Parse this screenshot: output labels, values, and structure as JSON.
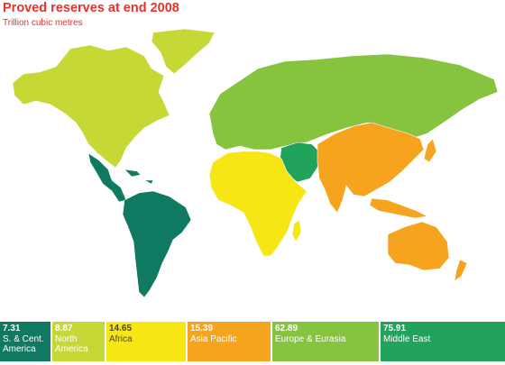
{
  "title": "Proved reserves at end 2008",
  "subtitle": "Trillion cubic metres",
  "regions": [
    {
      "id": "sc-america",
      "value": "7.31",
      "label": "S. & Cent. America",
      "color": "#0f7a61",
      "text": "#ffffff"
    },
    {
      "id": "north-america",
      "value": "8.87",
      "label": "North America",
      "color": "#c6d836",
      "text": "#ffffff"
    },
    {
      "id": "africa",
      "value": "14.65",
      "label": "Africa",
      "color": "#f5e614",
      "text": "#4a4a2a"
    },
    {
      "id": "asia-pacific",
      "value": "15.39",
      "label": "Asia Pacific",
      "color": "#f6a31e",
      "text": "#ffffff"
    },
    {
      "id": "europe-eurasia",
      "value": "62.89",
      "label": "Europe & Eurasia",
      "color": "#86c440",
      "text": "#ffffff"
    },
    {
      "id": "middle-east",
      "value": "75.91",
      "label": "Middle East",
      "color": "#21a35b",
      "text": "#ffffff"
    }
  ]
}
